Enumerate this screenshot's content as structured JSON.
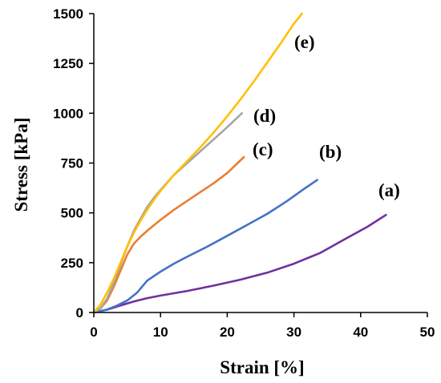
{
  "chart_data": {
    "type": "line",
    "xlabel": "Strain  [%]",
    "ylabel": "Stress [kPa]",
    "xlim": [
      0,
      50
    ],
    "ylim": [
      0,
      1500
    ],
    "xticks": [
      0,
      10,
      20,
      30,
      40,
      50
    ],
    "yticks": [
      0,
      250,
      500,
      750,
      1000,
      1250,
      1500
    ],
    "grid": false,
    "series": [
      {
        "name": "(a)",
        "color": "#7030A0",
        "x": [
          0,
          2,
          4,
          6,
          8,
          10,
          14,
          18,
          22,
          26,
          30,
          34,
          38,
          41,
          43.8
        ],
        "y": [
          0,
          14,
          35,
          55,
          72,
          85,
          108,
          135,
          165,
          200,
          245,
          300,
          375,
          430,
          490
        ]
      },
      {
        "name": "(b)",
        "color": "#4472C4",
        "x": [
          0,
          2,
          3.5,
          5,
          6.5,
          8,
          10,
          12,
          14,
          17,
          20,
          23,
          26,
          29,
          31.5,
          33.5
        ],
        "y": [
          0,
          15,
          35,
          60,
          100,
          160,
          205,
          245,
          280,
          330,
          385,
          440,
          495,
          560,
          620,
          665
        ]
      },
      {
        "name": "(c)",
        "color": "#ED7D31",
        "x": [
          0,
          1,
          2,
          3,
          4,
          5,
          6,
          7,
          8,
          10,
          12,
          14,
          16,
          18,
          20,
          22.5
        ],
        "y": [
          0,
          20,
          60,
          130,
          210,
          290,
          345,
          380,
          410,
          465,
          515,
          560,
          605,
          650,
          700,
          780
        ]
      },
      {
        "name": "(d)",
        "color": "#A5A5A5",
        "x": [
          0,
          1,
          2,
          3,
          4,
          5,
          6,
          7,
          8,
          9,
          10,
          12,
          14,
          16,
          18,
          20,
          22.2
        ],
        "y": [
          0,
          20,
          70,
          150,
          240,
          330,
          410,
          470,
          530,
          575,
          615,
          690,
          750,
          810,
          870,
          930,
          1000
        ]
      },
      {
        "name": "(e)",
        "color": "#FFC000",
        "x": [
          0,
          1,
          2,
          3,
          4,
          5,
          6,
          7,
          8,
          9,
          10,
          12,
          14,
          16,
          18,
          20,
          22,
          24,
          26,
          28,
          30,
          31.2
        ],
        "y": [
          0,
          40,
          100,
          170,
          250,
          330,
          400,
          460,
          515,
          565,
          610,
          690,
          760,
          830,
          905,
          985,
          1070,
          1160,
          1255,
          1350,
          1450,
          1500
        ]
      }
    ]
  }
}
